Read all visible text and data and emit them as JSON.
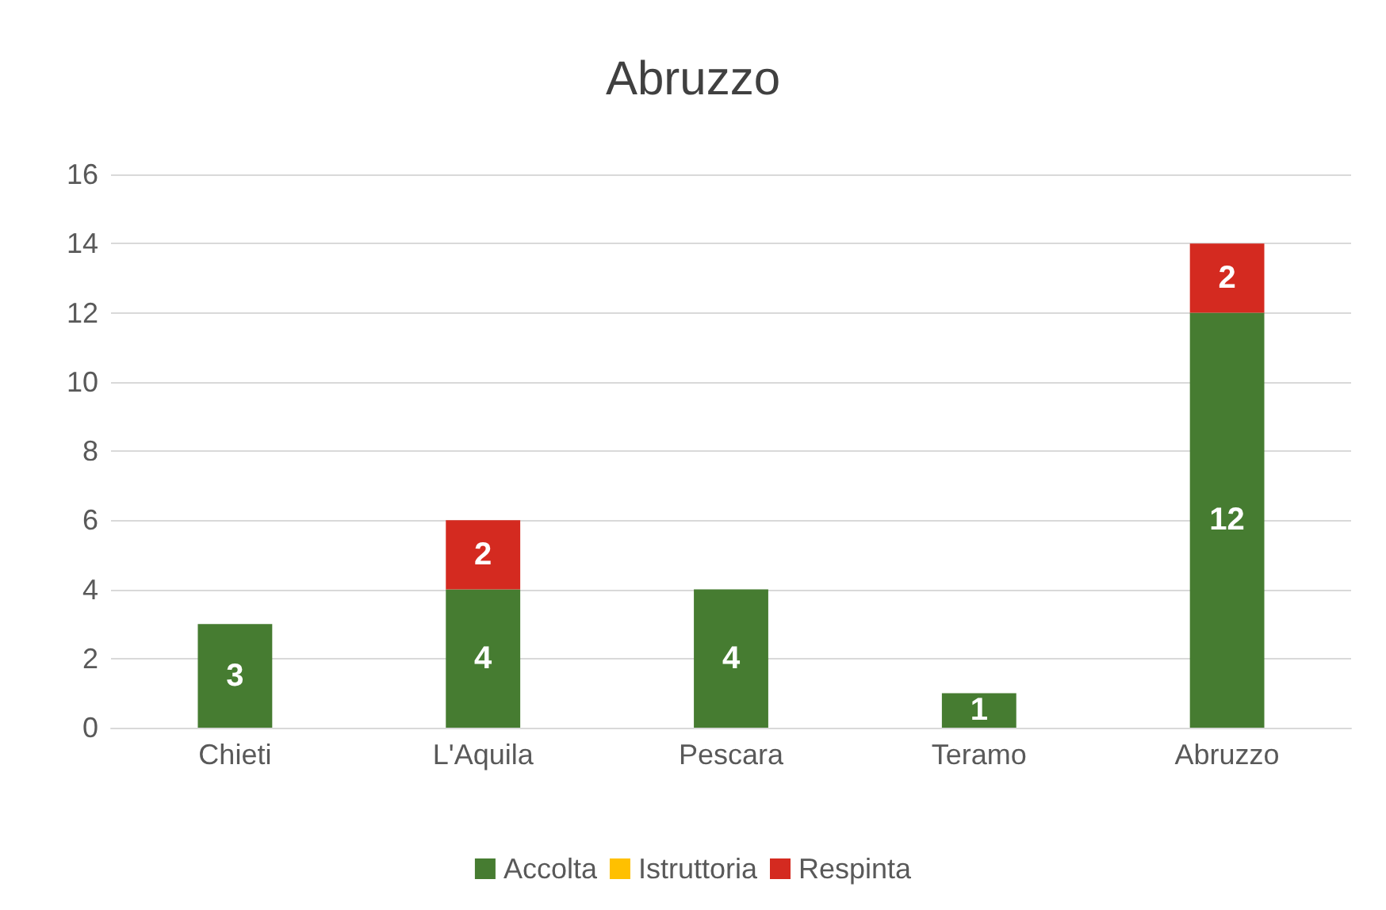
{
  "chart_data": {
    "type": "bar",
    "title": "Abruzzo",
    "categories": [
      "Chieti",
      "L'Aquila",
      "Pescara",
      "Teramo",
      "Abruzzo"
    ],
    "stacked": true,
    "series": [
      {
        "name": "Accolta",
        "color": "#467c31",
        "values": [
          3,
          4,
          4,
          1,
          12
        ]
      },
      {
        "name": "Istruttoria",
        "color": "#ffc000",
        "values": [
          null,
          null,
          null,
          null,
          null
        ]
      },
      {
        "name": "Respinta",
        "color": "#d42a20",
        "values": [
          null,
          2,
          null,
          null,
          2
        ]
      }
    ],
    "ylim": [
      0,
      16
    ],
    "yticks": [
      0,
      2,
      4,
      6,
      8,
      10,
      12,
      14,
      16
    ],
    "grid": "y",
    "legend": "bottom",
    "data_labels": true
  }
}
